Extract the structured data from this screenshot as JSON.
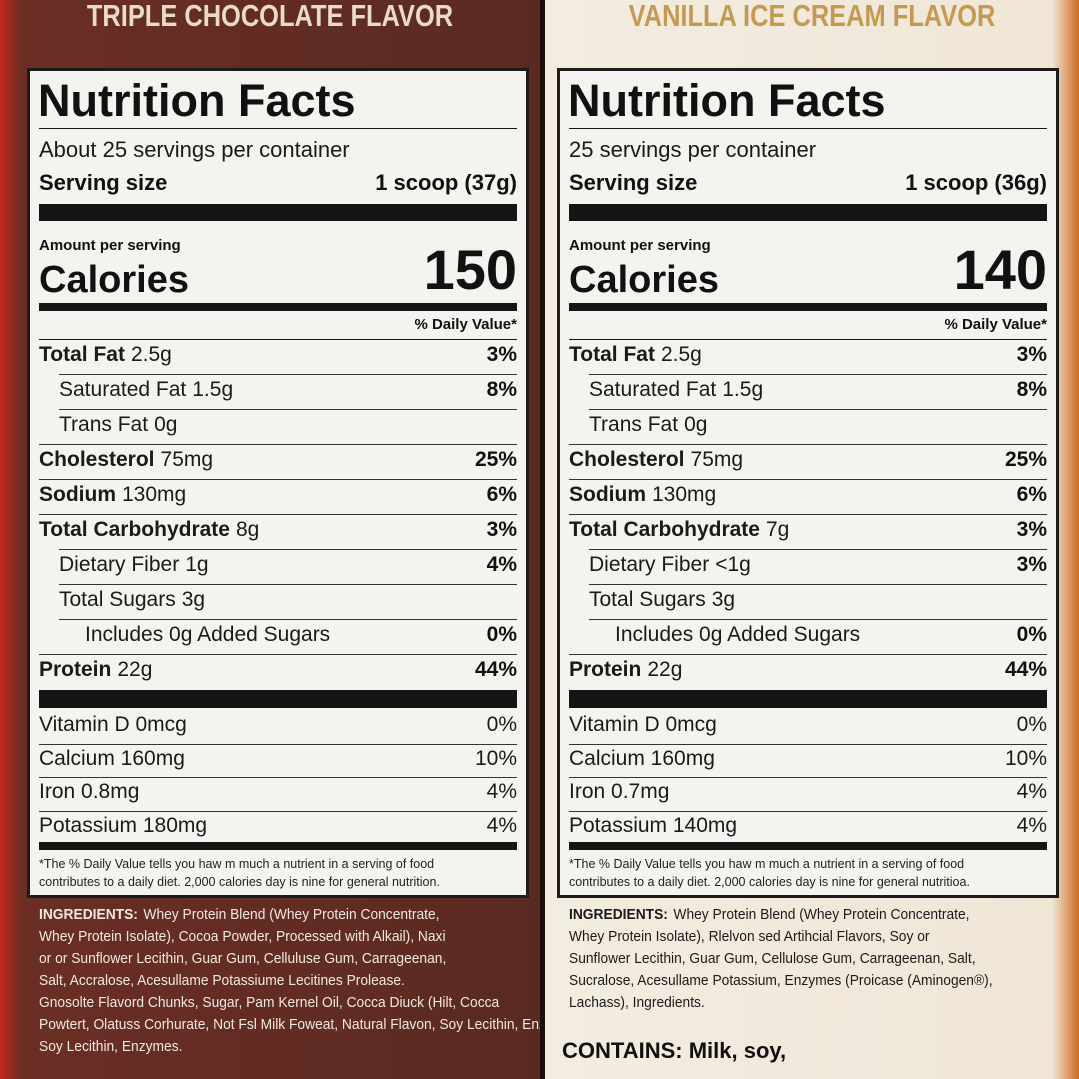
{
  "panels": [
    {
      "flavor": "TRIPLE CHOCOLATE FLAVOR",
      "title": "Nutrition Facts",
      "servings": "About 25 servings per container",
      "serving_size_label": "Serving size",
      "serving_size": "1 scoop (37g)",
      "amount_per_serving": "Amount per serving",
      "calories_label": "Calories",
      "calories": "150",
      "dv_header": "% Daily Value*",
      "nutrients": [
        {
          "name": "Total Fat",
          "amount": "2.5g",
          "dv": "3%"
        },
        {
          "name": "Saturated Fat",
          "amount": "1.5g",
          "dv": "8%"
        },
        {
          "name": "Trans Fat",
          "amount": "0g"
        },
        {
          "name": "Cholesterol",
          "amount": "75mg",
          "dv": "25%"
        },
        {
          "name": "Sodium",
          "amount": "130mg",
          "dv": "6%"
        },
        {
          "name": "Total Carbohydrate",
          "amount": "8g",
          "dv": "3%"
        },
        {
          "name": "Dietary Fiber",
          "amount": "1g",
          "dv": "4%"
        },
        {
          "name": "Total Sugars",
          "amount": "3g"
        },
        {
          "name": "Includes 0g Added Sugars",
          "amount": "",
          "dv": "0%"
        },
        {
          "name": "Protein",
          "amount": "22g",
          "dv": "44%"
        }
      ],
      "vitamins": [
        {
          "name": "Vitamin D 0mcg",
          "dv": "0%"
        },
        {
          "name": "Calcium 160mg",
          "dv": "10%"
        },
        {
          "name": "Iron 0.8mg",
          "dv": "4%"
        },
        {
          "name": "Potassium 180mg",
          "dv": "4%"
        }
      ],
      "footnote": [
        "*The % Daily Value tells you haw m much a nutrient in a serving of food",
        "contributes to a daily diet. 2,000 calories day is nine for general nutrition."
      ],
      "ingredients_label": "INGREDIENTS:",
      "ingredients": [
        "Whey Protein Blend (Whey Protein Concentrate,",
        "Whey Protein Isolate), Cocoa Powder, Processed with Alkail), Naxi",
        "or or Sunflower Lecithin, Guar Gum, Celluluse Gum, Carrageenan,",
        "Salt, Accralose, Acesullame Potassiume Lecitines Prolease.",
        "Gnosolte Flavord Chunks, Sugar, Pam Kernel Oil, Cocca Diuck (Hilt, Cocca",
        "Powtert, Olatuss Corhurate, Not Fsl Milk Foweat, Natural Flavon, Soy Lecithin, Enzymas,",
        "Soy Lecithin, Enzymes."
      ]
    },
    {
      "flavor": "VANILLA ICE CREAM FLAVOR",
      "title": "Nutrition Facts",
      "servings": "25 servings per container",
      "serving_size_label": "Serving size",
      "serving_size": "1 scoop (36g)",
      "amount_per_serving": "Amount per serving",
      "calories_label": "Calories",
      "calories": "140",
      "dv_header": "% Daily Value*",
      "nutrients": [
        {
          "name": "Total Fat",
          "amount": "2.5g",
          "dv": "3%"
        },
        {
          "name": "Saturated Fat",
          "amount": "1.5g",
          "dv": "8%"
        },
        {
          "name": "Trans Fat",
          "amount": "0g"
        },
        {
          "name": "Cholesterol",
          "amount": "75mg",
          "dv": "25%"
        },
        {
          "name": "Sodium",
          "amount": "130mg",
          "dv": "6%"
        },
        {
          "name": "Total Carbohydrate",
          "amount": "7g",
          "dv": "3%"
        },
        {
          "name": "Dietary Fiber",
          "amount": "<1g",
          "dv": "3%"
        },
        {
          "name": "Total Sugars",
          "amount": "3g"
        },
        {
          "name": "Includes 0g Added Sugars",
          "amount": "",
          "dv": "0%"
        },
        {
          "name": "Protein",
          "amount": "22g",
          "dv": "44%"
        }
      ],
      "vitamins": [
        {
          "name": "Vitamin D 0mcg",
          "dv": "0%"
        },
        {
          "name": "Calcium 160mg",
          "dv": "10%"
        },
        {
          "name": "Iron 0.7mg",
          "dv": "4%"
        },
        {
          "name": "Potassium 140mg",
          "dv": "4%"
        }
      ],
      "footnote": [
        "*The % Daily Value tells you haw m much a nutrient in a serving of food",
        "contributes to a daily diet. 2,000 calories day is nine for general nutritioa."
      ],
      "ingredients_label": "INGREDIENTS:",
      "ingredients": [
        "Whey Protein Blend (Whey Protein Concentrate,",
        "Whey Protein Isolate), Rlelvon sed Artihcial Flavors, Soy or",
        "Sunflower Lecithin, Guar Gum, Cellulose Gum, Carrageenan, Salt,",
        "Sucralose, Acesullame Potassium, Enzymes (Proicase (Aminogen®),",
        "Lachass), Ingredients."
      ],
      "contains": "CONTAINS: Milk, soy,"
    }
  ]
}
